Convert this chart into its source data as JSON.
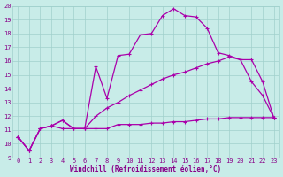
{
  "xlabel": "Windchill (Refroidissement éolien,°C)",
  "background_color": "#c8ece8",
  "grid_color": "#a0d0cc",
  "line_color": "#aa00aa",
  "xlim_min": -0.5,
  "xlim_max": 23.5,
  "ylim_min": 9,
  "ylim_max": 20,
  "xticks": [
    0,
    1,
    2,
    3,
    4,
    5,
    6,
    7,
    8,
    9,
    10,
    11,
    12,
    13,
    14,
    15,
    16,
    17,
    18,
    19,
    20,
    21,
    22,
    23
  ],
  "yticks": [
    9,
    10,
    11,
    12,
    13,
    14,
    15,
    16,
    17,
    18,
    19,
    20
  ],
  "line1_x": [
    0,
    1,
    2,
    3,
    4,
    5,
    6,
    7,
    8,
    9,
    10,
    11,
    12,
    13,
    14,
    15,
    16,
    17,
    18,
    19,
    20,
    21,
    22,
    23
  ],
  "line1_y": [
    10.5,
    9.5,
    11.1,
    11.3,
    11.7,
    11.1,
    11.1,
    15.6,
    13.3,
    16.4,
    16.5,
    17.9,
    18.0,
    19.3,
    19.8,
    19.3,
    19.2,
    18.4,
    16.6,
    16.4,
    16.1,
    14.5,
    13.5,
    11.9
  ],
  "line2_x": [
    0,
    1,
    2,
    3,
    4,
    5,
    6,
    7,
    8,
    9,
    10,
    11,
    12,
    13,
    14,
    15,
    16,
    17,
    18,
    19,
    20,
    21,
    22,
    23
  ],
  "line2_y": [
    10.5,
    9.5,
    11.1,
    11.3,
    11.1,
    11.1,
    11.1,
    11.1,
    11.1,
    11.4,
    11.4,
    11.4,
    11.5,
    11.5,
    11.6,
    11.6,
    11.7,
    11.8,
    11.8,
    11.9,
    11.9,
    11.9,
    11.9,
    11.9
  ],
  "line3_x": [
    0,
    1,
    2,
    3,
    4,
    5,
    6,
    7,
    8,
    9,
    10,
    11,
    12,
    13,
    14,
    15,
    16,
    17,
    18,
    19,
    20,
    21,
    22,
    23
  ],
  "line3_y": [
    10.5,
    9.5,
    11.1,
    11.3,
    11.7,
    11.1,
    11.1,
    12.0,
    12.6,
    13.0,
    13.5,
    13.9,
    14.3,
    14.7,
    15.0,
    15.2,
    15.5,
    15.8,
    16.0,
    16.3,
    16.1,
    16.1,
    14.5,
    11.9
  ],
  "tick_color": "#880088",
  "tick_fontsize": 5,
  "xlabel_fontsize": 5.5,
  "lw": 0.9,
  "markersize": 3
}
